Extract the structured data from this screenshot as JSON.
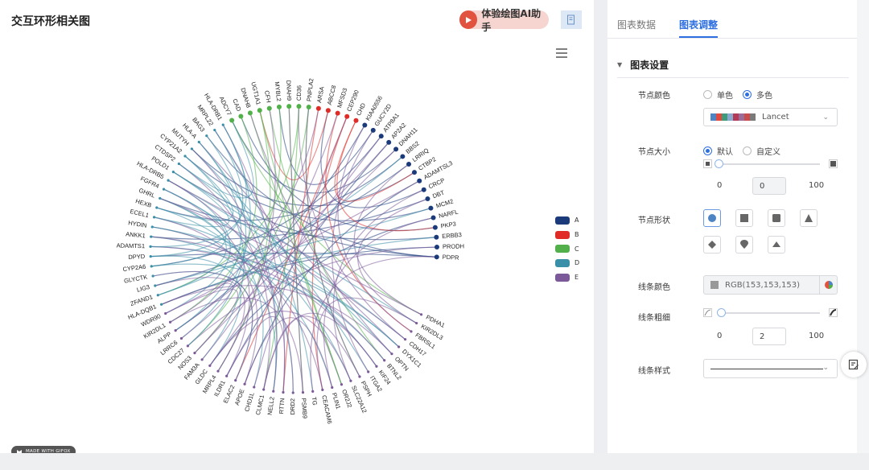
{
  "header": {
    "title": "交互环形相关图",
    "ai_label": "体验绘图AI助手"
  },
  "watermark": "MADE WITH GIFOX",
  "legend": [
    {
      "name": "A",
      "color": "#1b3a7a"
    },
    {
      "name": "B",
      "color": "#e02b27"
    },
    {
      "name": "C",
      "color": "#52b04a"
    },
    {
      "name": "D",
      "color": "#3a8fa8"
    },
    {
      "name": "E",
      "color": "#7c5a99"
    }
  ],
  "chart_data": {
    "type": "chord",
    "nodes": [
      {
        "label": "PDPR",
        "group": "A"
      },
      {
        "label": "PRODH",
        "group": "A"
      },
      {
        "label": "ERBB3",
        "group": "A"
      },
      {
        "label": "PKP3",
        "group": "A"
      },
      {
        "label": "NARFL",
        "group": "A"
      },
      {
        "label": "MCM2",
        "group": "A"
      },
      {
        "label": "DBT",
        "group": "A"
      },
      {
        "label": "CRCP",
        "group": "A"
      },
      {
        "label": "ADAMTSL3",
        "group": "A"
      },
      {
        "label": "CTBP2",
        "group": "A"
      },
      {
        "label": "LRRIQ",
        "group": "A"
      },
      {
        "label": "BBS2",
        "group": "A"
      },
      {
        "label": "DNAH11",
        "group": "A"
      },
      {
        "label": "AP2A2",
        "group": "A"
      },
      {
        "label": "ATP8A1",
        "group": "A"
      },
      {
        "label": "GUCY2D",
        "group": "A"
      },
      {
        "label": "KIAA0556",
        "group": "A"
      },
      {
        "label": "CHD",
        "group": "B"
      },
      {
        "label": "CEP290",
        "group": "B"
      },
      {
        "label": "MFSD3",
        "group": "B"
      },
      {
        "label": "ABCC8",
        "group": "B"
      },
      {
        "label": "ARSA",
        "group": "B"
      },
      {
        "label": "PNPLA2",
        "group": "C"
      },
      {
        "label": "CD36",
        "group": "C"
      },
      {
        "label": "DNAH9",
        "group": "C"
      },
      {
        "label": "MYBL2",
        "group": "C"
      },
      {
        "label": "CFH",
        "group": "C"
      },
      {
        "label": "UGT1A1",
        "group": "C"
      },
      {
        "label": "DNAH8",
        "group": "C"
      },
      {
        "label": "CAD",
        "group": "C"
      },
      {
        "label": "ADCY7",
        "group": "C"
      },
      {
        "label": "HLA-DRB1",
        "group": "D"
      },
      {
        "label": "MRPL22",
        "group": "D"
      },
      {
        "label": "BAG3",
        "group": "D"
      },
      {
        "label": "HLA-A",
        "group": "D"
      },
      {
        "label": "MUTYH",
        "group": "D"
      },
      {
        "label": "CYP21A2",
        "group": "D"
      },
      {
        "label": "CTDSP2",
        "group": "D"
      },
      {
        "label": "POLD1",
        "group": "D"
      },
      {
        "label": "HLA-DRB5",
        "group": "D"
      },
      {
        "label": "FGFR4",
        "group": "D"
      },
      {
        "label": "GHRL",
        "group": "D"
      },
      {
        "label": "HEXB",
        "group": "D"
      },
      {
        "label": "ECEL1",
        "group": "D"
      },
      {
        "label": "HYDIN",
        "group": "D"
      },
      {
        "label": "ANKK1",
        "group": "D"
      },
      {
        "label": "ADAMTS1",
        "group": "D"
      },
      {
        "label": "DPYD",
        "group": "D"
      },
      {
        "label": "CYP2A6",
        "group": "D"
      },
      {
        "label": "GLYCTK",
        "group": "D"
      },
      {
        "label": "LIG3",
        "group": "D"
      },
      {
        "label": "ZFAND1",
        "group": "D"
      },
      {
        "label": "HLA-DQB1",
        "group": "D"
      },
      {
        "label": "WDR90",
        "group": "E"
      },
      {
        "label": "KIR2DL1",
        "group": "E"
      },
      {
        "label": "ALPP",
        "group": "E"
      },
      {
        "label": "LRRC6",
        "group": "E"
      },
      {
        "label": "CDC27",
        "group": "E"
      },
      {
        "label": "NOS3",
        "group": "E"
      },
      {
        "label": "FAM3A",
        "group": "E"
      },
      {
        "label": "GLDC",
        "group": "E"
      },
      {
        "label": "MRPL4",
        "group": "E"
      },
      {
        "label": "ILDR1",
        "group": "E"
      },
      {
        "label": "ELAC2",
        "group": "E"
      },
      {
        "label": "APOE",
        "group": "E"
      },
      {
        "label": "CHD1L",
        "group": "E"
      },
      {
        "label": "CLMC1",
        "group": "E"
      },
      {
        "label": "NELL2",
        "group": "E"
      },
      {
        "label": "RTTN",
        "group": "E"
      },
      {
        "label": "DRD2",
        "group": "E"
      },
      {
        "label": "PSMB9",
        "group": "E"
      },
      {
        "label": "TG",
        "group": "E"
      },
      {
        "label": "CEACAM6",
        "group": "E"
      },
      {
        "label": "PLIN1",
        "group": "E"
      },
      {
        "label": "OR2J2",
        "group": "E"
      },
      {
        "label": "SLC22A12",
        "group": "E"
      },
      {
        "label": "PSPH",
        "group": "E"
      },
      {
        "label": "ITGA2",
        "group": "E"
      },
      {
        "label": "KIF24",
        "group": "E"
      },
      {
        "label": "BTNL2",
        "group": "E"
      },
      {
        "label": "OPTN",
        "group": "E"
      },
      {
        "label": "DYX1C1",
        "group": "E"
      },
      {
        "label": "CDH17",
        "group": "E"
      },
      {
        "label": "FBRSL1",
        "group": "E"
      },
      {
        "label": "KIR2DL3",
        "group": "E"
      },
      {
        "label": "PDHA1",
        "group": "E"
      }
    ],
    "links": [
      [
        0,
        47
      ],
      [
        0,
        38
      ],
      [
        0,
        33
      ],
      [
        1,
        52
      ],
      [
        2,
        41
      ],
      [
        3,
        29
      ],
      [
        4,
        60
      ],
      [
        5,
        36
      ],
      [
        6,
        45
      ],
      [
        7,
        20
      ],
      [
        8,
        64
      ],
      [
        9,
        35
      ],
      [
        10,
        50
      ],
      [
        11,
        42
      ],
      [
        12,
        30
      ],
      [
        13,
        62
      ],
      [
        14,
        48
      ],
      [
        15,
        25
      ],
      [
        16,
        55
      ],
      [
        17,
        9
      ],
      [
        17,
        3
      ],
      [
        18,
        63
      ],
      [
        18,
        72
      ],
      [
        19,
        83
      ],
      [
        20,
        27
      ],
      [
        21,
        68
      ],
      [
        22,
        58
      ],
      [
        22,
        76
      ],
      [
        23,
        51
      ],
      [
        23,
        66
      ],
      [
        24,
        70
      ],
      [
        25,
        57
      ],
      [
        26,
        79
      ],
      [
        27,
        61
      ],
      [
        28,
        74
      ],
      [
        29,
        54
      ],
      [
        30,
        85
      ],
      [
        31,
        56
      ],
      [
        32,
        71
      ],
      [
        34,
        67
      ],
      [
        35,
        77
      ],
      [
        36,
        59
      ],
      [
        37,
        80
      ],
      [
        38,
        84
      ],
      [
        39,
        53
      ],
      [
        39,
        82
      ],
      [
        40,
        75
      ],
      [
        41,
        65
      ],
      [
        42,
        69
      ],
      [
        43,
        78
      ],
      [
        44,
        73
      ],
      [
        46,
        81
      ],
      [
        47,
        60
      ],
      [
        49,
        63
      ],
      [
        50,
        5
      ],
      [
        51,
        11
      ],
      [
        52,
        2
      ],
      [
        53,
        8
      ],
      [
        55,
        13
      ],
      [
        57,
        1
      ],
      [
        58,
        12
      ],
      [
        60,
        14
      ],
      [
        61,
        26
      ],
      [
        62,
        40
      ],
      [
        64,
        43
      ],
      [
        66,
        37
      ],
      [
        68,
        31
      ],
      [
        70,
        24
      ],
      [
        72,
        44
      ],
      [
        74,
        32
      ],
      [
        76,
        22
      ],
      [
        78,
        46
      ],
      [
        80,
        28
      ],
      [
        81,
        34
      ],
      [
        83,
        16
      ],
      [
        84,
        6
      ],
      [
        85,
        10
      ],
      [
        45,
        67
      ],
      [
        33,
        57
      ],
      [
        48,
        79
      ],
      [
        54,
        21
      ],
      [
        59,
        19
      ],
      [
        65,
        18
      ],
      [
        71,
        0
      ],
      [
        73,
        4
      ],
      [
        75,
        7
      ],
      [
        77,
        15
      ],
      [
        82,
        23
      ],
      [
        69,
        39
      ],
      [
        63,
        49
      ],
      [
        56,
        52
      ],
      [
        44,
        81
      ],
      [
        42,
        36
      ],
      [
        37,
        30
      ],
      [
        31,
        46
      ],
      [
        27,
        74
      ],
      [
        34,
        55
      ],
      [
        40,
        48
      ],
      [
        41,
        51
      ],
      [
        43,
        38
      ],
      [
        47,
        32
      ],
      [
        53,
        58
      ],
      [
        61,
        50
      ],
      [
        66,
        76
      ],
      [
        67,
        35
      ],
      [
        68,
        62
      ],
      [
        70,
        54
      ],
      [
        72,
        84
      ],
      [
        73,
        64
      ],
      [
        75,
        60
      ],
      [
        78,
        66
      ],
      [
        79,
        45
      ],
      [
        80,
        52
      ],
      [
        82,
        41
      ],
      [
        85,
        39
      ]
    ]
  },
  "panel": {
    "tabs": {
      "data": "图表数据",
      "adjust": "图表调整"
    },
    "section_title": "图表设置",
    "node_color": {
      "label": "节点颜色",
      "opt_single": "单色",
      "opt_multi": "多色",
      "palette_name": "Lancet",
      "palette": [
        "#4d84c4",
        "#e04a3f",
        "#3e9b7b",
        "#8aa9cf",
        "#b33a57",
        "#9c6b97",
        "#c94c4c",
        "#7a7a7a"
      ]
    },
    "node_size": {
      "label": "节点大小",
      "opt_default": "默认",
      "opt_custom": "自定义",
      "min": "0",
      "value": "0",
      "max": "100"
    },
    "node_shape": {
      "label": "节点形状"
    },
    "line_color": {
      "label": "线条颜色",
      "value": "RGB(153,153,153)",
      "swatch": "#999999"
    },
    "line_width": {
      "label": "线条粗细",
      "min": "0",
      "value": "2",
      "max": "100"
    },
    "line_style": {
      "label": "线条样式"
    }
  }
}
